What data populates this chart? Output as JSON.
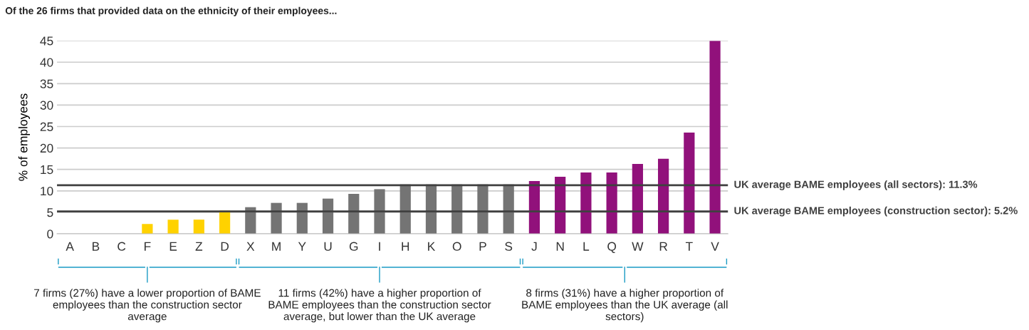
{
  "chart_data": {
    "type": "bar",
    "title": "Of the 26 firms that provided data on the ethnicity of their employees...",
    "ylabel": "% of employees",
    "categories": [
      "A",
      "B",
      "C",
      "F",
      "E",
      "Z",
      "D",
      "X",
      "M",
      "Y",
      "U",
      "G",
      "I",
      "H",
      "K",
      "O",
      "P",
      "S",
      "J",
      "N",
      "L",
      "Q",
      "W",
      "R",
      "T",
      "V"
    ],
    "values": [
      0,
      0,
      0,
      2.3,
      3.3,
      3.3,
      5.4,
      6.2,
      7.2,
      7.2,
      8.2,
      9.3,
      10.4,
      11.5,
      11.5,
      11.5,
      11.5,
      11.5,
      12.3,
      13.3,
      14.3,
      14.3,
      16.3,
      17.5,
      23.6,
      45
    ],
    "colors": [
      "#ffd200",
      "#ffd200",
      "#ffd200",
      "#ffd200",
      "#ffd200",
      "#ffd200",
      "#ffd200",
      "#747474",
      "#747474",
      "#747474",
      "#747474",
      "#747474",
      "#747474",
      "#747474",
      "#747474",
      "#747474",
      "#747474",
      "#747474",
      "#91117b",
      "#91117b",
      "#91117b",
      "#91117b",
      "#91117b",
      "#91117b",
      "#91117b",
      "#91117b"
    ],
    "ylim": [
      0,
      45
    ],
    "yticks": [
      0,
      5,
      10,
      15,
      20,
      25,
      30,
      35,
      40,
      45
    ],
    "grid": "y",
    "ref_lines": [
      {
        "axis": "y",
        "value": 11.3,
        "label": "UK average BAME employees (all sectors): 11.3%",
        "color": "#404040"
      },
      {
        "axis": "y",
        "value": 5.2,
        "label": "UK average BAME employees (construction sector): 5.2%",
        "color": "#404040"
      }
    ],
    "annotations": [
      "7 firms (27%) have a lower proportion of BAME employees than the construction sector average",
      "11 firms (42%) have a higher proportion of BAME employees than the construction sector average, but lower than the UK average",
      "8 firms (31%) have a higher proportion of BAME employees than the UK average (all sectors)"
    ]
  }
}
